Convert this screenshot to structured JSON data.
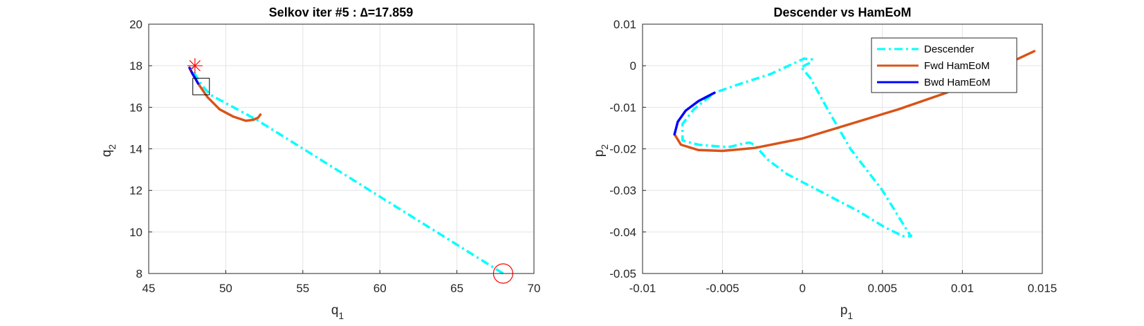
{
  "chart_data": [
    {
      "type": "line",
      "title": "Selkov iter #5 : ∆=17.859",
      "xlabel": "q",
      "xlabel_sub": "1",
      "ylabel": "q",
      "ylabel_sub": "2",
      "xlim": [
        45,
        70
      ],
      "ylim": [
        8,
        20
      ],
      "xticks": [
        45,
        50,
        55,
        60,
        65,
        70
      ],
      "yticks": [
        8,
        10,
        12,
        14,
        16,
        18,
        20
      ],
      "grid": true,
      "series": [
        {
          "role": "descender",
          "style": "dashdot",
          "color": "#00FFFF",
          "x": [
            68.0,
            64.0,
            60.0,
            56.0,
            52.0,
            50.0,
            49.0,
            48.4,
            48.0,
            47.75
          ],
          "y": [
            8.0,
            9.85,
            11.7,
            13.55,
            15.4,
            16.2,
            16.6,
            17.1,
            17.6,
            18.1
          ]
        },
        {
          "role": "fwd",
          "style": "solid",
          "color": "#D95319",
          "x": [
            48.2,
            48.8,
            49.6,
            50.5,
            51.3,
            51.8,
            52.1,
            52.25
          ],
          "y": [
            17.15,
            16.5,
            15.9,
            15.55,
            15.35,
            15.4,
            15.5,
            15.65
          ]
        },
        {
          "role": "bwd",
          "style": "solid",
          "color": "#0000FF",
          "x": [
            47.65,
            47.85,
            48.05,
            48.2
          ],
          "y": [
            17.9,
            17.6,
            17.35,
            17.15
          ]
        }
      ],
      "markers": [
        {
          "type": "asterisk",
          "color": "#FF0000",
          "x": 48.0,
          "y": 18.0
        },
        {
          "type": "square",
          "color": "#000000",
          "x": 48.4,
          "y": 17.0
        },
        {
          "type": "circle",
          "color": "#FF0000",
          "x": 68.0,
          "y": 8.0
        }
      ]
    },
    {
      "type": "line",
      "title": "Descender vs HamEoM",
      "xlabel": "p",
      "xlabel_sub": "1",
      "ylabel": "p",
      "ylabel_sub": "2",
      "xlim": [
        -0.01,
        0.015
      ],
      "ylim": [
        -0.05,
        0.01
      ],
      "xticks": [
        -0.01,
        -0.005,
        0,
        0.005,
        0.01,
        0.015
      ],
      "xtick_labels": [
        "-0.01",
        "-0.005",
        "0",
        "0.005",
        "0.01",
        "0.015"
      ],
      "yticks": [
        -0.05,
        -0.04,
        -0.03,
        -0.02,
        -0.01,
        0,
        0.01
      ],
      "ytick_labels": [
        "-0.05",
        "-0.04",
        "-0.03",
        "-0.02",
        "-0.01",
        "0",
        "0.01"
      ],
      "grid": true,
      "legend": {
        "position": "top-right",
        "entries": [
          {
            "label": "Descender",
            "color": "#00FFFF",
            "style": "dashdot"
          },
          {
            "label": "Fwd HamEoM",
            "color": "#D95319",
            "style": "solid"
          },
          {
            "label": "Bwd HamEoM",
            "color": "#0000FF",
            "style": "solid"
          }
        ]
      },
      "series": [
        {
          "name": "Descender",
          "style": "dashdot",
          "color": "#00FFFF",
          "x": [
            0.0,
            0.0005,
            0.0006,
            0.0001,
            -0.002,
            -0.004,
            -0.0055,
            -0.0068,
            -0.0075,
            -0.0075,
            -0.0065,
            -0.005,
            -0.0045,
            -0.0037,
            -0.0033,
            -0.003,
            -0.0022,
            -0.001,
            0.0005,
            0.002,
            0.0035,
            0.0052,
            0.0063,
            0.0068,
            0.0066,
            0.005,
            0.003,
            0.0015,
            0.0005,
            0.0,
            0.0
          ],
          "y": [
            -0.0002,
            0.0008,
            0.0015,
            0.0017,
            -0.002,
            -0.0045,
            -0.0065,
            -0.0105,
            -0.014,
            -0.018,
            -0.019,
            -0.0195,
            -0.0195,
            -0.0187,
            -0.0185,
            -0.019,
            -0.0225,
            -0.026,
            -0.029,
            -0.032,
            -0.035,
            -0.039,
            -0.041,
            -0.041,
            -0.04,
            -0.03,
            -0.02,
            -0.01,
            -0.003,
            -0.0007,
            -0.0002
          ]
        },
        {
          "name": "Fwd HamEoM",
          "style": "solid",
          "color": "#D95319",
          "x": [
            -0.008,
            -0.0076,
            -0.0065,
            -0.005,
            -0.003,
            0.0,
            0.003,
            0.006,
            0.009,
            0.012,
            0.0145
          ],
          "y": [
            -0.0165,
            -0.019,
            -0.0203,
            -0.0205,
            -0.0198,
            -0.0175,
            -0.014,
            -0.0105,
            -0.0065,
            -0.001,
            0.0035
          ]
        },
        {
          "name": "Bwd HamEoM",
          "style": "solid",
          "color": "#0000FF",
          "x": [
            -0.0055,
            -0.0065,
            -0.0073,
            -0.0078,
            -0.008
          ],
          "y": [
            -0.0065,
            -0.0085,
            -0.0108,
            -0.0135,
            -0.0165
          ]
        }
      ]
    }
  ]
}
